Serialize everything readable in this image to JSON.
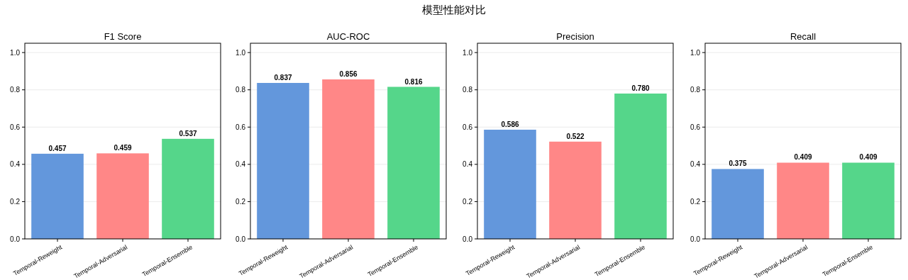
{
  "chart_data": [
    {
      "type": "bar",
      "title": "F1 Score",
      "annotations": [
        "模型性能对比"
      ],
      "categories": [
        "Temporal-Reweight",
        "Temporal-Adversarial",
        "Temporal-Ensemble"
      ],
      "values": [
        0.457,
        0.459,
        0.537
      ],
      "value_labels": [
        "0.457",
        "0.459",
        "0.537"
      ],
      "colors": [
        "#6397dc",
        "#ff8787",
        "#55d68a"
      ],
      "ylim": [
        0,
        1.05
      ],
      "yticks": [
        {
          "value": 0,
          "label": "0.0"
        },
        {
          "value": 0.2,
          "label": "0.2"
        },
        {
          "value": 0.4,
          "label": "0.4"
        },
        {
          "value": 0.6,
          "label": "0.6"
        },
        {
          "value": 0.8,
          "label": "0.8"
        },
        {
          "value": 1,
          "label": "1.0"
        }
      ],
      "grid": "y"
    },
    {
      "type": "bar",
      "title": "AUC-ROC",
      "categories": [
        "Temporal-Reweight",
        "Temporal-Adversarial",
        "Temporal-Ensemble"
      ],
      "values": [
        0.837,
        0.856,
        0.816
      ],
      "value_labels": [
        "0.837",
        "0.856",
        "0.816"
      ],
      "colors": [
        "#6397dc",
        "#ff8787",
        "#55d68a"
      ],
      "ylim": [
        0,
        1.05
      ],
      "yticks": [
        {
          "value": 0,
          "label": "0.0"
        },
        {
          "value": 0.2,
          "label": "0.2"
        },
        {
          "value": 0.4,
          "label": "0.4"
        },
        {
          "value": 0.6,
          "label": "0.6"
        },
        {
          "value": 0.8,
          "label": "0.8"
        },
        {
          "value": 1,
          "label": "1.0"
        }
      ],
      "grid": "y"
    },
    {
      "type": "bar",
      "title": "Precision",
      "categories": [
        "Temporal-Reweight",
        "Temporal-Adversarial",
        "Temporal-Ensemble"
      ],
      "values": [
        0.586,
        0.522,
        0.78
      ],
      "value_labels": [
        "0.586",
        "0.522",
        "0.780"
      ],
      "colors": [
        "#6397dc",
        "#ff8787",
        "#55d68a"
      ],
      "ylim": [
        0,
        1.05
      ],
      "yticks": [
        {
          "value": 0,
          "label": "0.0"
        },
        {
          "value": 0.2,
          "label": "0.2"
        },
        {
          "value": 0.4,
          "label": "0.4"
        },
        {
          "value": 0.6,
          "label": "0.6"
        },
        {
          "value": 0.8,
          "label": "0.8"
        },
        {
          "value": 1,
          "label": "1.0"
        }
      ],
      "grid": "y"
    },
    {
      "type": "bar",
      "title": "Recall",
      "categories": [
        "Temporal-Reweight",
        "Temporal-Adversarial",
        "Temporal-Ensemble"
      ],
      "values": [
        0.375,
        0.409,
        0.409
      ],
      "value_labels": [
        "0.375",
        "0.409",
        "0.409"
      ],
      "colors": [
        "#6397dc",
        "#ff8787",
        "#55d68a"
      ],
      "ylim": [
        0,
        1.05
      ],
      "yticks": [
        {
          "value": 0,
          "label": "0.0"
        },
        {
          "value": 0.2,
          "label": "0.2"
        },
        {
          "value": 0.4,
          "label": "0.4"
        },
        {
          "value": 0.6,
          "label": "0.6"
        },
        {
          "value": 0.8,
          "label": "0.8"
        },
        {
          "value": 1,
          "label": "1.0"
        }
      ],
      "grid": "y"
    }
  ]
}
